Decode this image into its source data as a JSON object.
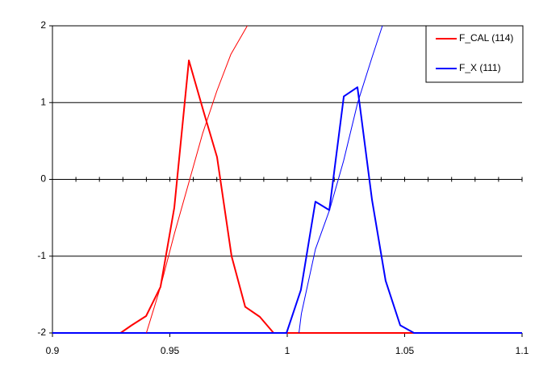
{
  "chart_data": {
    "type": "line",
    "xlim": [
      0.9,
      1.1
    ],
    "xticks": [
      0.9,
      0.95,
      1,
      1.05,
      1.1
    ],
    "ylim": [
      -2,
      2
    ],
    "yticks": [
      -2,
      -1,
      0,
      1,
      2
    ],
    "grid": true,
    "legend": "top-right",
    "series": [
      {
        "name": "F_CAL (114)",
        "color": "#ff0000",
        "width": 2,
        "x": [
          0.9,
          0.929,
          0.9337,
          0.9399,
          0.946,
          0.9519,
          0.9581,
          0.9643,
          0.9701,
          0.9763,
          0.9821,
          0.9883,
          0.9942,
          1.1
        ],
        "values": [
          -2,
          -2,
          -1.9,
          -1.78,
          -1.4,
          -0.37,
          1.55,
          0.89,
          0.29,
          -1.0,
          -1.66,
          -1.79,
          -2,
          -2
        ]
      },
      {
        "name": "F_X (111)",
        "color": "#0000ff",
        "width": 2,
        "x": [
          0.9,
          0.9997,
          1.0058,
          1.012,
          1.0179,
          1.0241,
          1.0299,
          1.0361,
          1.0419,
          1.0481,
          1.054,
          1.1
        ],
        "values": [
          -2,
          -2,
          -1.44,
          -0.29,
          -0.4,
          1.08,
          1.2,
          -0.27,
          -1.32,
          -1.9,
          -2,
          -2
        ]
      },
      {
        "color": "#ff0000",
        "width": 1,
        "x": [
          0.94,
          0.946,
          0.952,
          0.958,
          0.964,
          0.97,
          0.976,
          0.983
        ],
        "values": [
          -2,
          -1.4,
          -0.7,
          -0.05,
          0.6,
          1.15,
          1.63,
          2
        ]
      },
      {
        "color": "#0000ff",
        "width": 1,
        "x": [
          1.005,
          1.006,
          1.012,
          1.018,
          1.024,
          1.03,
          1.036,
          1.0405
        ],
        "values": [
          -2,
          -1.75,
          -0.91,
          -0.4,
          0.24,
          1.0,
          1.58,
          2
        ]
      }
    ]
  }
}
